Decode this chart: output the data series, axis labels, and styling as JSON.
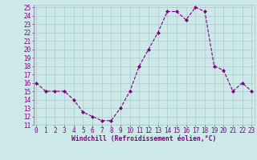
{
  "hours": [
    0,
    1,
    2,
    3,
    4,
    5,
    6,
    7,
    8,
    9,
    10,
    11,
    12,
    13,
    14,
    15,
    16,
    17,
    18,
    19,
    20,
    21,
    22,
    23
  ],
  "temps": [
    16,
    15,
    15,
    15,
    14,
    12.5,
    12,
    11.5,
    11.5,
    13,
    15,
    18,
    20,
    22,
    24.5,
    24.5,
    23.5,
    25,
    24.5,
    18,
    17.5,
    15,
    16,
    15
  ],
  "ylim_min": 11,
  "ylim_max": 25,
  "xlim_min": 0,
  "xlim_max": 23,
  "yticks": [
    11,
    12,
    13,
    14,
    15,
    16,
    17,
    18,
    19,
    20,
    21,
    22,
    23,
    24,
    25
  ],
  "xticks": [
    0,
    1,
    2,
    3,
    4,
    5,
    6,
    7,
    8,
    9,
    10,
    11,
    12,
    13,
    14,
    15,
    16,
    17,
    18,
    19,
    20,
    21,
    22,
    23
  ],
  "xlabel": "Windchill (Refroidissement éolien,°C)",
  "line_color": "#800080",
  "marker_color": "#800080",
  "bg_color": "#cce8e8",
  "grid_color": "#aacccc",
  "font_color": "#800080",
  "tick_fontsize": 5.5,
  "xlabel_fontsize": 5.8,
  "line_width": 0.8,
  "marker_size": 2.0
}
